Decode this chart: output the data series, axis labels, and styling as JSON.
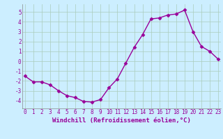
{
  "x": [
    0,
    1,
    2,
    3,
    4,
    5,
    6,
    7,
    8,
    9,
    10,
    11,
    12,
    13,
    14,
    15,
    16,
    17,
    18,
    19,
    20,
    21,
    22,
    23
  ],
  "y": [
    -1.5,
    -2.1,
    -2.1,
    -2.4,
    -3.0,
    -3.5,
    -3.7,
    -4.1,
    -4.15,
    -3.9,
    -2.7,
    -1.8,
    -0.2,
    1.4,
    2.7,
    4.3,
    4.4,
    4.7,
    4.8,
    5.2,
    3.0,
    1.5,
    1.0,
    0.2
  ],
  "line_color": "#990099",
  "marker": "D",
  "markersize": 2.5,
  "linewidth": 1.0,
  "bg_color": "#cceeff",
  "grid_color": "#aaccbb",
  "xlabel": "Windchill (Refroidissement éolien,°C)",
  "xlabel_color": "#990099",
  "xlabel_fontsize": 6.5,
  "ylabel_ticks": [
    -4,
    -3,
    -2,
    -1,
    0,
    1,
    2,
    3,
    4,
    5
  ],
  "xtick_labels": [
    "0",
    "1",
    "2",
    "3",
    "4",
    "5",
    "6",
    "7",
    "8",
    "9",
    "10",
    "11",
    "12",
    "13",
    "14",
    "15",
    "16",
    "17",
    "18",
    "19",
    "20",
    "21",
    "22",
    "23"
  ],
  "ylim": [
    -4.8,
    5.8
  ],
  "xlim": [
    -0.3,
    23.3
  ],
  "tick_fontsize": 5.5,
  "tick_color": "#990099"
}
